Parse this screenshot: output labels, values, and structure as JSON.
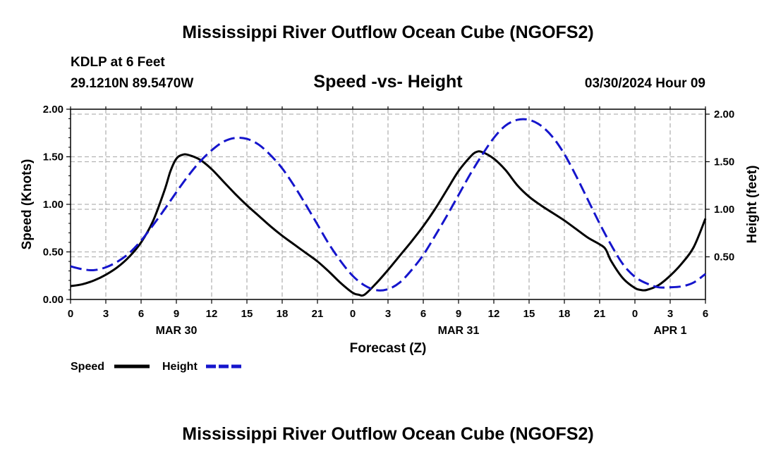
{
  "header": {
    "title": "Mississippi River Outflow Ocean Cube (NGOFS2)",
    "station": "KDLP at 6 Feet",
    "coords": "29.1210N  89.5470W",
    "timestamp": "03/30/2024 Hour 09",
    "bottom_title": "Mississippi River Outflow Ocean Cube (NGOFS2)"
  },
  "colors": {
    "speed": "#000000",
    "height": "#1515cc",
    "grid": "#b4b4b4"
  },
  "chart_data": {
    "type": "line",
    "title": "Speed -vs- Height",
    "xlabel": "Forecast (Z)",
    "ylabel_left": "Speed (Knots)",
    "ylabel_right": "Height (feet)",
    "x_unit": "hours from 00Z MAR 30",
    "xlim": [
      0,
      54
    ],
    "ylim_left": [
      0,
      2.0
    ],
    "ylim_right": [
      0.0,
      2.0
    ],
    "x_ticks": [
      0,
      3,
      6,
      9,
      12,
      15,
      18,
      21,
      24,
      27,
      30,
      33,
      36,
      39,
      42,
      45,
      48,
      51,
      54
    ],
    "x_tick_labels": [
      "0",
      "3",
      "6",
      "9",
      "12",
      "15",
      "18",
      "21",
      "0",
      "3",
      "6",
      "9",
      "12",
      "15",
      "18",
      "21",
      "0",
      "3",
      "6"
    ],
    "y_ticks_left": [
      "0.00",
      "0.50",
      "1.00",
      "1.50",
      "2.00"
    ],
    "y_ticks_right": [
      "0.50",
      "1.00",
      "1.50",
      "2.00"
    ],
    "date_labels": [
      {
        "label": "MAR 30",
        "hour": 9
      },
      {
        "label": "MAR 31",
        "hour": 33
      },
      {
        "label": "APR 1",
        "hour": 51
      }
    ],
    "grid": true,
    "series": [
      {
        "name": "Speed",
        "axis": "left",
        "style": "solid",
        "x": [
          0,
          1,
          2,
          3,
          4,
          5,
          6,
          7,
          8,
          8.5,
          9,
          9.5,
          10,
          11,
          12,
          13,
          14,
          15,
          16,
          17,
          18,
          19,
          20,
          21,
          22,
          23,
          24,
          24.5,
          25,
          26,
          27,
          28,
          29,
          30,
          31,
          32,
          33,
          34,
          34.5,
          35,
          36,
          37,
          38,
          39,
          40,
          41,
          42,
          43,
          44,
          45,
          45.5,
          46,
          47,
          48,
          48.5,
          49,
          50,
          51,
          52,
          53,
          54
        ],
        "y": [
          0.14,
          0.16,
          0.2,
          0.26,
          0.34,
          0.45,
          0.6,
          0.82,
          1.15,
          1.35,
          1.48,
          1.52,
          1.52,
          1.47,
          1.37,
          1.24,
          1.11,
          0.99,
          0.88,
          0.77,
          0.67,
          0.58,
          0.49,
          0.4,
          0.29,
          0.17,
          0.07,
          0.05,
          0.05,
          0.17,
          0.31,
          0.46,
          0.61,
          0.77,
          0.95,
          1.15,
          1.35,
          1.5,
          1.55,
          1.55,
          1.48,
          1.36,
          1.2,
          1.08,
          0.99,
          0.91,
          0.83,
          0.74,
          0.65,
          0.58,
          0.53,
          0.4,
          0.22,
          0.12,
          0.1,
          0.1,
          0.15,
          0.25,
          0.38,
          0.55,
          0.85
        ]
      },
      {
        "name": "Height",
        "axis": "right",
        "style": "dashed",
        "x": [
          0,
          1,
          2,
          3,
          4,
          5,
          6,
          7,
          8,
          9,
          10,
          11,
          12,
          13,
          14,
          15,
          16,
          17,
          18,
          19,
          20,
          21,
          22,
          23,
          24,
          25,
          26,
          27,
          28,
          29,
          30,
          31,
          32,
          33,
          34,
          35,
          36,
          37,
          38,
          39,
          40,
          41,
          42,
          43,
          44,
          45,
          46,
          47,
          48,
          49,
          50,
          51,
          52,
          53,
          54
        ],
        "y": [
          0.4,
          0.37,
          0.36,
          0.39,
          0.45,
          0.54,
          0.67,
          0.83,
          1.0,
          1.18,
          1.35,
          1.5,
          1.62,
          1.71,
          1.75,
          1.74,
          1.68,
          1.57,
          1.43,
          1.25,
          1.05,
          0.84,
          0.63,
          0.45,
          0.3,
          0.2,
          0.15,
          0.16,
          0.23,
          0.36,
          0.52,
          0.72,
          0.93,
          1.15,
          1.37,
          1.57,
          1.75,
          1.88,
          1.94,
          1.94,
          1.88,
          1.76,
          1.58,
          1.35,
          1.1,
          0.85,
          0.62,
          0.42,
          0.29,
          0.22,
          0.18,
          0.18,
          0.19,
          0.23,
          0.32
        ]
      }
    ]
  },
  "legend": {
    "speed_label": "Speed",
    "height_label": "Height"
  }
}
